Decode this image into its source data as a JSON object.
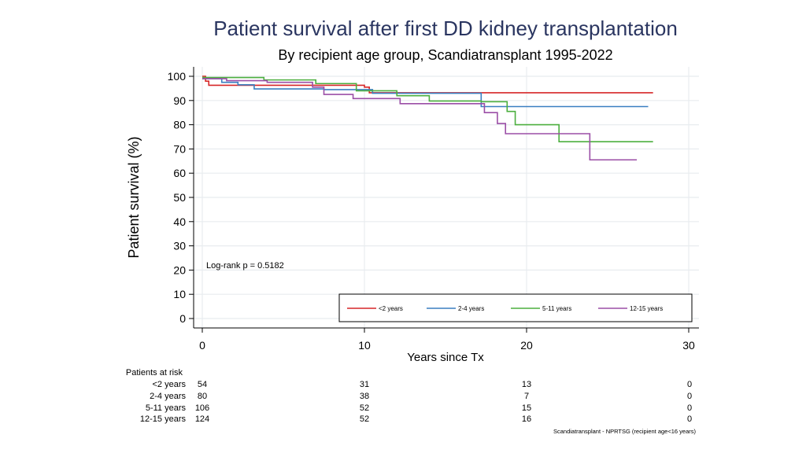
{
  "chart_data": {
    "type": "line",
    "title": "Patient survival after first DD kidney transplantation",
    "subtitle": "By recipient age group, Scandiatransplant 1995-2022",
    "xlabel": "Years since Tx",
    "ylabel": "Patient survival (%)",
    "xlim": [
      0,
      30
    ],
    "ylim": [
      0,
      100
    ],
    "xticks": [
      0,
      10,
      20,
      30
    ],
    "yticks": [
      0,
      10,
      20,
      30,
      40,
      50,
      60,
      70,
      80,
      90,
      100
    ],
    "grid": true,
    "annotation": "Log-rank p = 0.5182",
    "legend_position": "bottom-right",
    "series": [
      {
        "name": "<2 years",
        "color": "#d62728",
        "points": [
          [
            0,
            100
          ],
          [
            0.2,
            98
          ],
          [
            0.4,
            96.3
          ],
          [
            7.2,
            96.3
          ],
          [
            10,
            95.5
          ],
          [
            10.3,
            93.2
          ],
          [
            27.8,
            93.2
          ]
        ]
      },
      {
        "name": "2-4 years",
        "color": "#3a7fc1",
        "points": [
          [
            0,
            99
          ],
          [
            1.2,
            97.5
          ],
          [
            2.2,
            96.5
          ],
          [
            3.2,
            94.8
          ],
          [
            6.2,
            94.8
          ],
          [
            7.5,
            94.5
          ],
          [
            10.5,
            93
          ],
          [
            17.2,
            87.5
          ],
          [
            27.5,
            87.5
          ]
        ]
      },
      {
        "name": "5-11 years",
        "color": "#4caf3f",
        "points": [
          [
            0,
            99.5
          ],
          [
            3.8,
            98.5
          ],
          [
            7,
            97
          ],
          [
            9.5,
            94
          ],
          [
            12,
            92
          ],
          [
            14,
            89.8
          ],
          [
            17.2,
            89.5
          ],
          [
            18.8,
            85.5
          ],
          [
            19.3,
            80
          ],
          [
            22,
            73
          ],
          [
            27.8,
            73
          ]
        ]
      },
      {
        "name": "12-15 years",
        "color": "#9b4ea6",
        "points": [
          [
            0,
            99
          ],
          [
            1.5,
            98.2
          ],
          [
            4,
            97.5
          ],
          [
            6.8,
            95.5
          ],
          [
            7.5,
            92.5
          ],
          [
            9.3,
            90.8
          ],
          [
            12.2,
            88.7
          ],
          [
            17.2,
            88.7
          ],
          [
            17.4,
            85
          ],
          [
            18.2,
            80.5
          ],
          [
            18.7,
            76.3
          ],
          [
            23.8,
            76.3
          ],
          [
            23.9,
            65.5
          ],
          [
            26.8,
            65.5
          ]
        ]
      }
    ],
    "risk_table": {
      "header": "Patients at risk",
      "times": [
        0,
        10,
        20,
        30
      ],
      "rows": [
        {
          "label": "<2 years",
          "values": [
            "54",
            "31",
            "13",
            "0"
          ]
        },
        {
          "label": "2-4 years",
          "values": [
            "80",
            "38",
            "7",
            "0"
          ]
        },
        {
          "label": "5-11 years",
          "values": [
            "106",
            "52",
            "15",
            "0"
          ]
        },
        {
          "label": "12-15 years",
          "values": [
            "124",
            "52",
            "16",
            "0"
          ]
        }
      ]
    },
    "footnote": "Scandiatransplant - NPRTSG (recipient age<16 years)"
  }
}
